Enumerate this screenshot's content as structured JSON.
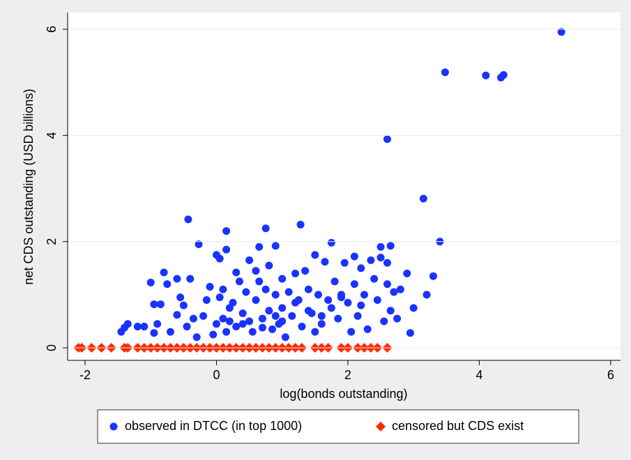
{
  "chart_data": {
    "type": "scatter",
    "x_label": "log(bonds outstanding)",
    "y_label": "net CDS outstanding (USD billions)",
    "xlim": [
      -2.265,
      6.15
    ],
    "ylim": [
      -0.236,
      6.315
    ],
    "xticks": [
      -2,
      0,
      2,
      4,
      6
    ],
    "yticks": [
      0,
      2,
      4,
      6
    ],
    "grid": true,
    "legend": "bottom",
    "series": [
      {
        "name": "observed in DTCC (in top 1000)",
        "color": "#1a33ff",
        "marker": "circle",
        "x": [
          5.25,
          3.48,
          4.1,
          4.33,
          4.37,
          2.6,
          3.15,
          3.4,
          -0.43,
          0.15,
          0.75,
          1.28,
          -0.27,
          0.15,
          1.75,
          2.5,
          2.65,
          -1.0,
          -0.8,
          -0.4,
          3.3,
          3.2,
          3.0,
          2.95,
          -1.4,
          -1.35,
          -1.1,
          -1.45,
          -1.2,
          -0.95,
          -0.9,
          -0.95,
          -0.85,
          -0.75,
          -0.7,
          -0.6,
          -0.55,
          -0.5,
          -0.45,
          -0.35,
          -0.3,
          -0.2,
          -0.15,
          -0.1,
          -0.05,
          0,
          0,
          0.05,
          0.05,
          0.1,
          0.1,
          0.15,
          0.2,
          0.25,
          0.3,
          0.3,
          0.35,
          0.4,
          0.45,
          0.5,
          0.5,
          0.55,
          0.6,
          0.6,
          0.65,
          0.65,
          0.7,
          0.75,
          0.8,
          0.8,
          0.85,
          0.9,
          0.9,
          0.95,
          1.0,
          1.0,
          1.05,
          1.1,
          1.15,
          1.2,
          1.25,
          1.3,
          1.35,
          1.4,
          1.45,
          1.5,
          1.5,
          1.55,
          1.6,
          1.65,
          1.7,
          1.75,
          1.8,
          1.85,
          1.9,
          1.95,
          2.0,
          2.05,
          2.1,
          2.1,
          2.15,
          2.2,
          2.25,
          2.3,
          2.35,
          2.4,
          2.45,
          2.5,
          2.55,
          2.6,
          2.6,
          2.65,
          2.7,
          2.75,
          2.8,
          2.9,
          -0.6,
          0.4,
          0.7,
          1.0,
          1.2,
          1.6,
          1.9,
          2.2,
          0.2,
          0.9,
          1.4
        ],
        "values": [
          5.95,
          5.19,
          5.13,
          5.09,
          5.14,
          3.93,
          2.81,
          2.0,
          2.42,
          2.2,
          2.25,
          2.32,
          1.95,
          1.85,
          1.98,
          1.9,
          1.92,
          1.23,
          1.42,
          1.3,
          1.35,
          1.0,
          0.75,
          0.28,
          0.38,
          0.45,
          0.4,
          0.3,
          0.4,
          0.28,
          0.45,
          0.82,
          0.82,
          1.2,
          0.3,
          0.62,
          0.95,
          0.8,
          0.4,
          0.55,
          0.2,
          0.6,
          0.9,
          1.15,
          0.25,
          0.45,
          1.75,
          1.68,
          0.95,
          1.1,
          0.55,
          0.3,
          0.75,
          0.85,
          0.4,
          1.42,
          1.25,
          0.45,
          1.05,
          0.5,
          1.65,
          0.3,
          0.9,
          1.45,
          1.9,
          1.25,
          0.55,
          1.1,
          0.7,
          1.55,
          0.35,
          1.92,
          1.0,
          0.45,
          1.3,
          0.75,
          0.2,
          1.05,
          0.6,
          1.4,
          0.9,
          0.4,
          1.45,
          1.1,
          0.65,
          1.75,
          0.3,
          1.0,
          0.45,
          1.62,
          0.9,
          0.75,
          1.25,
          0.55,
          1.0,
          1.6,
          0.85,
          0.3,
          1.72,
          1.2,
          0.6,
          1.5,
          1.0,
          0.35,
          1.65,
          1.3,
          0.9,
          1.7,
          0.5,
          1.6,
          1.2,
          0.7,
          1.05,
          0.55,
          1.1,
          1.4,
          1.3,
          0.65,
          0.38,
          0.5,
          0.85,
          0.6,
          0.95,
          0.8,
          0.5,
          0.6,
          0.7
        ]
      },
      {
        "name": "censored but CDS exist",
        "color": "#ff2a00",
        "marker": "diamond",
        "x": [
          -2.1,
          -2.05,
          -1.9,
          -1.75,
          -1.6,
          -1.4,
          -1.35,
          -1.2,
          -1.1,
          -1.0,
          -0.9,
          -0.8,
          -0.7,
          -0.6,
          -0.5,
          -0.4,
          -0.3,
          -0.2,
          -0.1,
          0,
          0.1,
          0.2,
          0.3,
          0.4,
          0.5,
          0.6,
          0.7,
          0.8,
          0.9,
          1.0,
          1.1,
          1.2,
          1.3,
          1.5,
          1.6,
          1.7,
          1.9,
          2.0,
          2.15,
          2.25,
          2.35,
          2.45,
          2.6
        ],
        "values": [
          0,
          0,
          0,
          0,
          0,
          0,
          0,
          0,
          0,
          0,
          0,
          0,
          0,
          0,
          0,
          0,
          0,
          0,
          0,
          0,
          0,
          0,
          0,
          0,
          0,
          0,
          0,
          0,
          0,
          0,
          0,
          0,
          0,
          0,
          0,
          0,
          0,
          0,
          0,
          0,
          0,
          0,
          0
        ]
      }
    ]
  }
}
